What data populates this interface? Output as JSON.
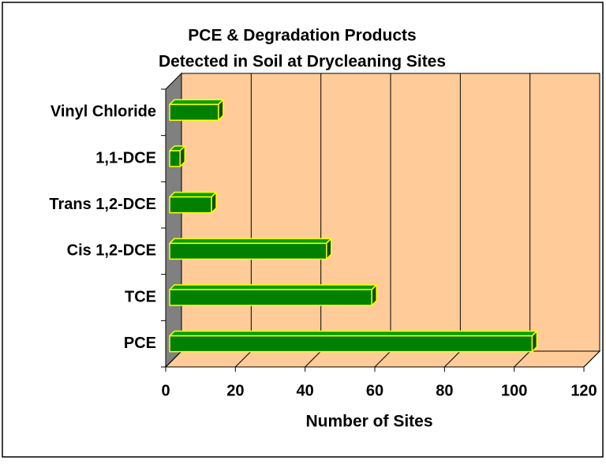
{
  "chart_data": {
    "type": "bar",
    "orientation": "horizontal",
    "title": [
      "PCE & Degradation Products",
      "Detected in Soil at Drycleaning Sites"
    ],
    "x_label": "Number of Sites",
    "categories": [
      "PCE",
      "TCE",
      "Cis 1,2-DCE",
      "Trans 1,2-DCE",
      "1,1-DCE",
      "Vinyl Chloride"
    ],
    "values": [
      104,
      58,
      45,
      12,
      3,
      14
    ],
    "color": "#008000",
    "edge_color": "#ffff00",
    "background": "#ffcc99",
    "xlim": [
      0,
      120
    ],
    "xticks": [
      0,
      20,
      40,
      60,
      80,
      100,
      120
    ],
    "grid": true
  }
}
